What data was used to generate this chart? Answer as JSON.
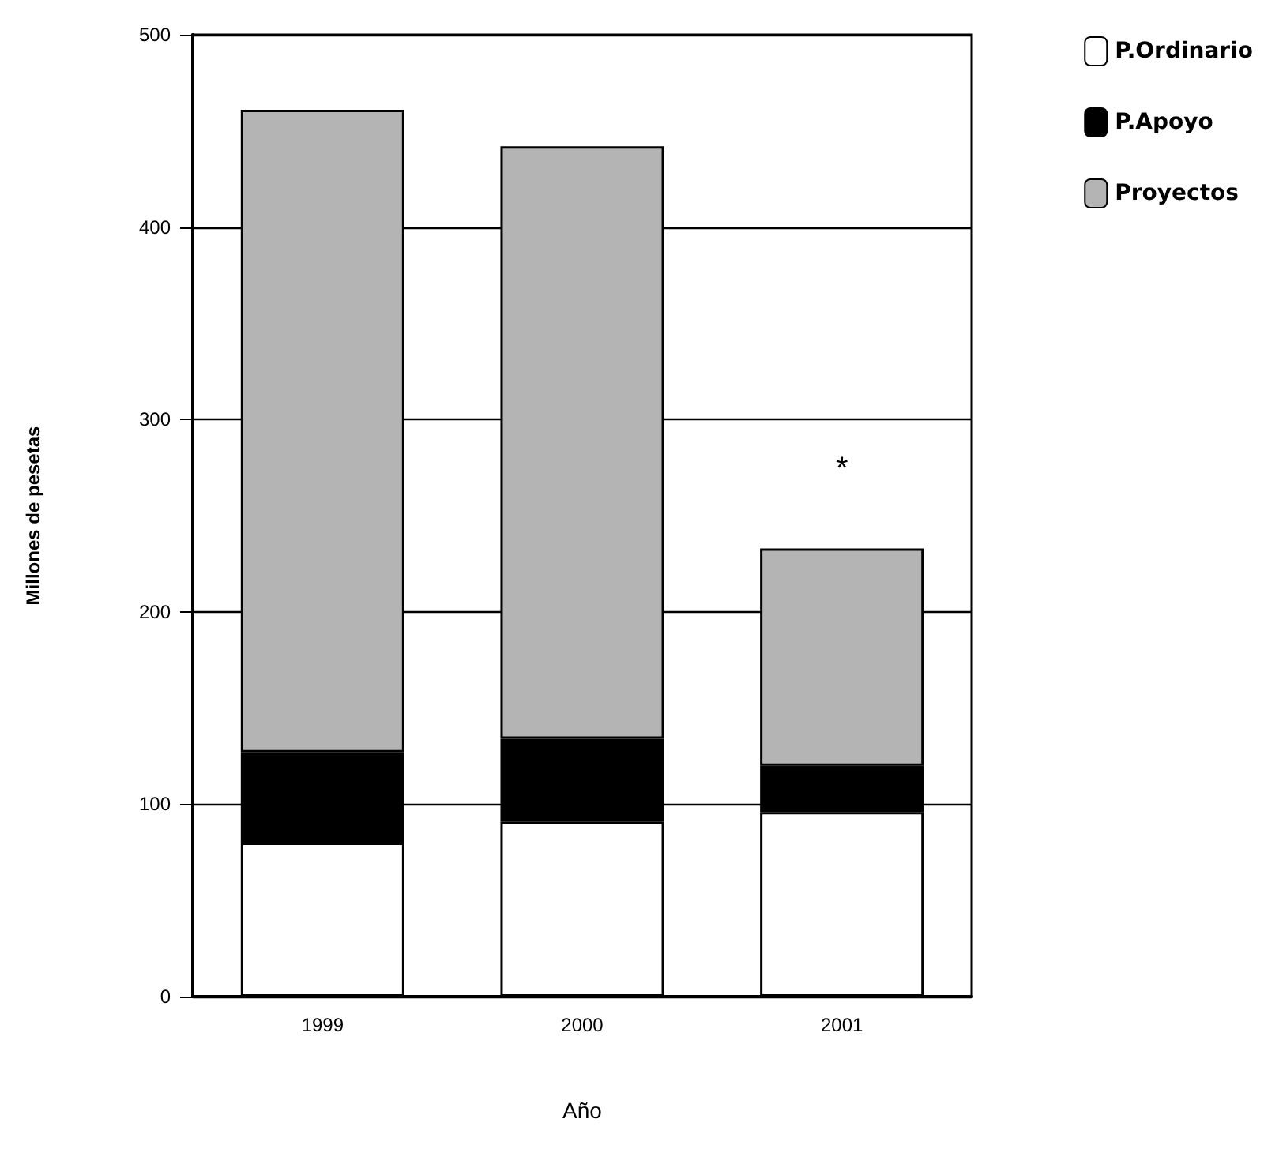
{
  "chart_data": {
    "type": "bar",
    "stacked": true,
    "xlabel": "Año",
    "ylabel": "Millones de pesetas",
    "categories": [
      "1999",
      "2000",
      "2001"
    ],
    "series": [
      {
        "name": "P.Ordinario",
        "color": "#ffffff",
        "values": [
          80,
          91,
          96
        ]
      },
      {
        "name": "P.Apoyo",
        "color": "#000000",
        "values": [
          47,
          43,
          24
        ]
      },
      {
        "name": "Proyectos",
        "color": "#b4b4b4",
        "values": [
          334,
          308,
          113
        ]
      }
    ],
    "ylim": [
      0,
      500
    ],
    "yticks": [
      0,
      100,
      200,
      300,
      400,
      500
    ],
    "grid": "y",
    "legend": "top right",
    "annotations": [
      "*"
    ]
  }
}
